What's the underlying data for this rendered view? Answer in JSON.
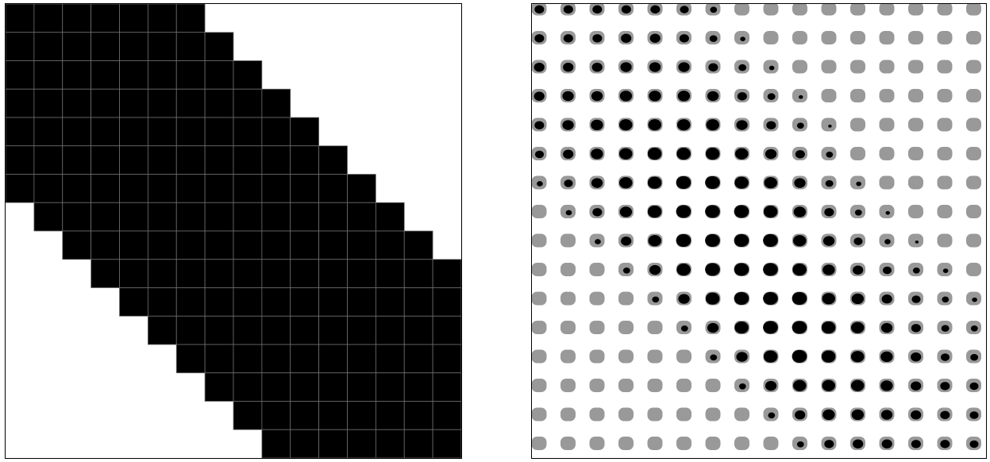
{
  "colors": {
    "background": "#ffffff",
    "filled": "#000000",
    "gridline": "#6f6f6f",
    "dot_shadow": "#999999",
    "dot": "#000000",
    "border": "#000000"
  },
  "left_grid": {
    "rows": 16,
    "cols": 16,
    "filled_ranges": [
      [
        0,
        6
      ],
      [
        0,
        7
      ],
      [
        0,
        8
      ],
      [
        0,
        9
      ],
      [
        0,
        10
      ],
      [
        0,
        11
      ],
      [
        0,
        12
      ],
      [
        1,
        13
      ],
      [
        2,
        14
      ],
      [
        3,
        15
      ],
      [
        4,
        15
      ],
      [
        5,
        15
      ],
      [
        6,
        15
      ],
      [
        7,
        15
      ],
      [
        8,
        15
      ],
      [
        9,
        15
      ]
    ]
  },
  "right_grid": {
    "rows": 16,
    "cols": 16,
    "dot_sizes": [
      [
        0.55,
        0.55,
        0.55,
        0.55,
        0.55,
        0.5,
        0.4,
        0,
        0,
        0,
        0,
        0,
        0,
        0,
        0,
        0
      ],
      [
        0.55,
        0.55,
        0.55,
        0.6,
        0.6,
        0.55,
        0.45,
        0.3,
        0,
        0,
        0,
        0,
        0,
        0,
        0,
        0
      ],
      [
        0.6,
        0.6,
        0.6,
        0.65,
        0.65,
        0.65,
        0.55,
        0.45,
        0.3,
        0,
        0,
        0,
        0,
        0,
        0,
        0
      ],
      [
        0.6,
        0.65,
        0.65,
        0.7,
        0.7,
        0.7,
        0.65,
        0.55,
        0.45,
        0.25,
        0,
        0,
        0,
        0,
        0,
        0
      ],
      [
        0.55,
        0.65,
        0.7,
        0.75,
        0.75,
        0.75,
        0.75,
        0.65,
        0.55,
        0.4,
        0.2,
        0,
        0,
        0,
        0,
        0
      ],
      [
        0.5,
        0.6,
        0.7,
        0.75,
        0.8,
        0.8,
        0.8,
        0.75,
        0.65,
        0.55,
        0.4,
        0,
        0,
        0,
        0,
        0
      ],
      [
        0.35,
        0.5,
        0.65,
        0.75,
        0.8,
        0.85,
        0.85,
        0.8,
        0.75,
        0.65,
        0.45,
        0.3,
        0,
        0,
        0,
        0
      ],
      [
        0,
        0.35,
        0.55,
        0.7,
        0.8,
        0.85,
        0.85,
        0.85,
        0.8,
        0.7,
        0.55,
        0.4,
        0.25,
        0,
        0,
        0
      ],
      [
        0,
        0,
        0.35,
        0.6,
        0.75,
        0.85,
        0.85,
        0.85,
        0.85,
        0.75,
        0.65,
        0.5,
        0.35,
        0.2,
        0,
        0
      ],
      [
        0,
        0,
        0,
        0.4,
        0.65,
        0.8,
        0.85,
        0.85,
        0.85,
        0.8,
        0.7,
        0.6,
        0.5,
        0.4,
        0.3,
        0
      ],
      [
        0,
        0,
        0,
        0,
        0.4,
        0.65,
        0.8,
        0.85,
        0.85,
        0.85,
        0.75,
        0.7,
        0.6,
        0.5,
        0.4,
        0.3
      ],
      [
        0,
        0,
        0,
        0,
        0,
        0.4,
        0.65,
        0.8,
        0.85,
        0.85,
        0.8,
        0.75,
        0.65,
        0.55,
        0.45,
        0.4
      ],
      [
        0,
        0,
        0,
        0,
        0,
        0,
        0.4,
        0.65,
        0.8,
        0.85,
        0.8,
        0.75,
        0.7,
        0.6,
        0.5,
        0.45
      ],
      [
        0,
        0,
        0,
        0,
        0,
        0,
        0,
        0.4,
        0.65,
        0.75,
        0.75,
        0.75,
        0.7,
        0.6,
        0.55,
        0.5
      ],
      [
        0,
        0,
        0,
        0,
        0,
        0,
        0,
        0,
        0.4,
        0.6,
        0.7,
        0.7,
        0.65,
        0.6,
        0.55,
        0.5
      ],
      [
        0,
        0,
        0,
        0,
        0,
        0,
        0,
        0,
        0,
        0.4,
        0.55,
        0.6,
        0.6,
        0.55,
        0.55,
        0.5
      ]
    ]
  }
}
